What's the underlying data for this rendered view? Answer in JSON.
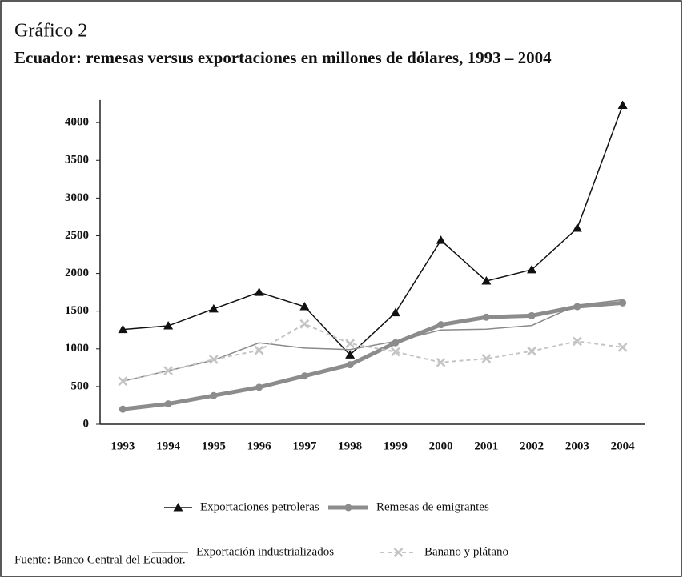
{
  "chart_data": {
    "type": "line",
    "title": "Gráfico 2",
    "subtitle": "Ecuador: remesas versus exportaciones en millones de dólares, 1993 – 2004",
    "source": "Fuente: Banco Central del Ecuador.",
    "categories": [
      "1993",
      "1994",
      "1995",
      "1996",
      "1997",
      "1998",
      "1999",
      "2000",
      "2001",
      "2002",
      "2003",
      "2004"
    ],
    "series": [
      {
        "name": "Exportaciones petroleras",
        "color": "#111111",
        "marker": "triangle",
        "width": 1.5,
        "values": [
          1257,
          1305,
          1530,
          1750,
          1560,
          920,
          1480,
          2440,
          1900,
          2050,
          2600,
          4230
        ]
      },
      {
        "name": "Remesas de emigrantes",
        "color": "#8c8c8c",
        "marker": "circle",
        "width": 5,
        "values": [
          200,
          270,
          380,
          490,
          640,
          790,
          1080,
          1320,
          1420,
          1440,
          1560,
          1610
        ]
      },
      {
        "name": "Exportación industrializados",
        "color": "#8a8a8a",
        "marker": "none",
        "width": 1.5,
        "values": [
          570,
          710,
          850,
          1080,
          1010,
          990,
          1100,
          1250,
          1260,
          1310,
          1580,
          1650
        ]
      },
      {
        "name": "Banano y plátano",
        "color": "#c4c4c4",
        "marker": "x",
        "width": 2,
        "dash": true,
        "values": [
          570,
          710,
          860,
          980,
          1330,
          1070,
          960,
          820,
          870,
          970,
          1100,
          1020
        ]
      }
    ],
    "ylim": [
      0,
      4300
    ],
    "yticks": [
      0,
      500,
      1000,
      1500,
      2000,
      2500,
      3000,
      3500,
      4000
    ]
  }
}
